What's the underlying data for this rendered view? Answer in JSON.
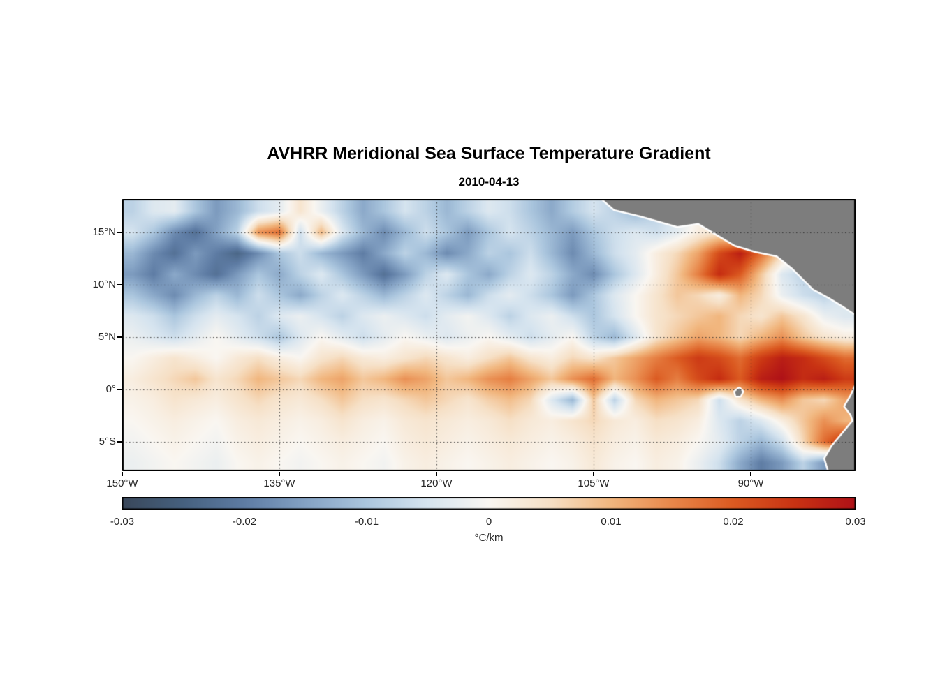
{
  "title": "AVHRR Meridional Sea Surface Temperature Gradient",
  "subtitle": "2010-04-13",
  "chart_data": {
    "type": "heatmap",
    "title": "AVHRR Meridional Sea Surface Temperature Gradient",
    "subtitle": "2010-04-13",
    "x_range_deg_lon": [
      -150,
      -80
    ],
    "y_range_deg_lat": [
      -7.8,
      18.2
    ],
    "grid_on": true,
    "axes": {
      "lat_ticks": [
        {
          "lat": 15,
          "label": "15°N"
        },
        {
          "lat": 10,
          "label": "10°N"
        },
        {
          "lat": 5,
          "label": "5°N"
        },
        {
          "lat": 0,
          "label": "0°"
        },
        {
          "lat": -5,
          "label": "5°S"
        }
      ],
      "lon_ticks": [
        {
          "lon": -150,
          "label": "150°W"
        },
        {
          "lon": -135,
          "label": "135°W"
        },
        {
          "lon": -120,
          "label": "120°W"
        },
        {
          "lon": -105,
          "label": "105°W"
        },
        {
          "lon": -90,
          "label": "90°W"
        }
      ]
    },
    "colorbar": {
      "min": -0.03,
      "max": 0.03,
      "ticks": [
        "-0.03",
        "-0.02",
        "-0.01",
        "0",
        "0.01",
        "0.02",
        "0.03"
      ],
      "unit": "°C/km"
    },
    "colormap": [
      {
        "v": -0.03,
        "c": "#39475a"
      },
      {
        "v": -0.025,
        "c": "#46617f"
      },
      {
        "v": -0.02,
        "c": "#5e7ca4"
      },
      {
        "v": -0.015,
        "c": "#84a2c4"
      },
      {
        "v": -0.01,
        "c": "#abc6de"
      },
      {
        "v": -0.005,
        "c": "#d6e4ef"
      },
      {
        "v": 0.0,
        "c": "#f9f6f1"
      },
      {
        "v": 0.005,
        "c": "#f6e0c6"
      },
      {
        "v": 0.01,
        "c": "#f1b67e"
      },
      {
        "v": 0.015,
        "c": "#e8874a"
      },
      {
        "v": 0.02,
        "c": "#db5a21"
      },
      {
        "v": 0.025,
        "c": "#c93313"
      },
      {
        "v": 0.03,
        "c": "#af1117"
      }
    ],
    "land_color": "#7d7d7d",
    "coast_halo_color": "#ffffff",
    "grid": {
      "lon_start": -149,
      "lon_step": 2,
      "cols": 35,
      "lat_start": 17,
      "lat_step": -2,
      "rows": 13,
      "units": "milli °C/km (value/1000 = °C/km), estimated from image",
      "values_milli": [
        [
          -8,
          -4,
          -3,
          -10,
          -16,
          -12,
          -6,
          -3,
          4,
          -2,
          -8,
          -14,
          -10,
          -5,
          -8,
          -12,
          -8,
          -4,
          -6,
          -10,
          -14,
          -9,
          -5,
          -8,
          -12,
          -8,
          -4,
          0,
          0,
          0,
          0,
          0,
          0,
          0,
          0
        ],
        [
          -5,
          -10,
          -18,
          -22,
          -15,
          -8,
          14,
          18,
          -6,
          10,
          -4,
          -12,
          -18,
          -12,
          -6,
          -10,
          -16,
          -10,
          -5,
          -8,
          -12,
          -16,
          -10,
          -6,
          -4,
          -6,
          -3,
          2,
          4,
          0,
          0,
          0,
          0,
          0,
          0
        ],
        [
          -12,
          -18,
          -22,
          -16,
          -20,
          -24,
          -18,
          -10,
          -6,
          -12,
          -16,
          -20,
          -14,
          -8,
          -12,
          -18,
          -14,
          -8,
          -10,
          -6,
          -12,
          -18,
          -12,
          -6,
          -3,
          2,
          6,
          12,
          22,
          28,
          18,
          6,
          0,
          0,
          0
        ],
        [
          -16,
          -20,
          -14,
          -18,
          -22,
          -16,
          -10,
          -14,
          -8,
          -4,
          -10,
          -16,
          -22,
          -16,
          -8,
          -4,
          -10,
          -14,
          -8,
          -4,
          -8,
          -14,
          -18,
          -10,
          -4,
          2,
          8,
          16,
          26,
          20,
          8,
          -4,
          -8,
          -6,
          -4
        ],
        [
          -10,
          -14,
          -18,
          -12,
          -8,
          -12,
          -6,
          -10,
          -14,
          -8,
          -4,
          -8,
          -12,
          -8,
          -4,
          -8,
          -12,
          -6,
          -3,
          -6,
          -10,
          -16,
          -10,
          -4,
          0,
          4,
          8,
          6,
          2,
          10,
          6,
          -2,
          -6,
          -8,
          -4
        ],
        [
          -4,
          -6,
          -10,
          -6,
          -3,
          -5,
          -8,
          -4,
          -2,
          -5,
          -8,
          -4,
          -2,
          -4,
          -6,
          -3,
          -1,
          -4,
          -8,
          -4,
          -2,
          -6,
          -10,
          -5,
          0,
          4,
          6,
          8,
          10,
          6,
          4,
          8,
          4,
          -2,
          -4
        ],
        [
          -2,
          -4,
          -6,
          -3,
          0,
          -3,
          -6,
          -10,
          -4,
          0,
          -3,
          -6,
          -3,
          0,
          -2,
          -4,
          -2,
          0,
          -3,
          -6,
          -3,
          0,
          -8,
          -12,
          -4,
          4,
          8,
          12,
          10,
          6,
          10,
          14,
          8,
          4,
          2
        ],
        [
          0,
          2,
          4,
          2,
          0,
          3,
          5,
          2,
          0,
          4,
          6,
          3,
          2,
          4,
          6,
          4,
          2,
          5,
          8,
          4,
          2,
          6,
          4,
          8,
          12,
          16,
          20,
          24,
          22,
          18,
          24,
          28,
          26,
          22,
          18
        ],
        [
          2,
          4,
          6,
          8,
          4,
          6,
          10,
          8,
          6,
          10,
          12,
          8,
          10,
          14,
          12,
          8,
          10,
          14,
          16,
          12,
          8,
          14,
          18,
          10,
          14,
          20,
          16,
          22,
          26,
          20,
          28,
          30,
          26,
          28,
          24
        ],
        [
          1,
          2,
          4,
          3,
          2,
          4,
          6,
          4,
          3,
          5,
          8,
          5,
          4,
          6,
          8,
          6,
          4,
          7,
          9,
          6,
          -4,
          -12,
          8,
          -8,
          6,
          10,
          8,
          6,
          -6,
          4,
          10,
          14,
          8,
          6,
          12
        ],
        [
          0,
          1,
          2,
          1,
          0,
          2,
          3,
          2,
          1,
          2,
          4,
          2,
          1,
          3,
          4,
          3,
          2,
          3,
          5,
          3,
          2,
          4,
          6,
          3,
          2,
          5,
          4,
          2,
          -4,
          -8,
          -4,
          2,
          8,
          14,
          10
        ],
        [
          -1,
          0,
          1,
          0,
          -1,
          1,
          2,
          1,
          0,
          1,
          2,
          1,
          0,
          2,
          3,
          2,
          1,
          2,
          3,
          2,
          1,
          2,
          4,
          2,
          1,
          3,
          2,
          0,
          -3,
          -8,
          -12,
          -6,
          6,
          18,
          26
        ],
        [
          -2,
          -1,
          0,
          -1,
          -2,
          0,
          1,
          0,
          -1,
          0,
          1,
          0,
          -1,
          1,
          2,
          1,
          0,
          1,
          2,
          1,
          0,
          1,
          3,
          1,
          0,
          2,
          1,
          -2,
          -6,
          -14,
          -20,
          -16,
          -8,
          -16,
          -22
        ]
      ]
    },
    "land_polygons": [
      {
        "name": "central-america-mexico",
        "points": [
          [
            -104.5,
            18.5
          ],
          [
            -103,
            17.2
          ],
          [
            -100.5,
            16.6
          ],
          [
            -97,
            15.6
          ],
          [
            -95,
            15.9
          ],
          [
            -93.5,
            15.0
          ],
          [
            -91.5,
            13.8
          ],
          [
            -89.5,
            13.2
          ],
          [
            -87.5,
            12.8
          ],
          [
            -86,
            11.6
          ],
          [
            -85,
            10.6
          ],
          [
            -84,
            9.6
          ],
          [
            -82.5,
            8.8
          ],
          [
            -81.2,
            8.0
          ],
          [
            -80,
            7.2
          ],
          [
            -79.5,
            7.5
          ],
          [
            -79.5,
            18.5
          ]
        ]
      },
      {
        "name": "south-america",
        "points": [
          [
            -79.5,
            0.6
          ],
          [
            -80,
            0.3
          ],
          [
            -80.4,
            -0.6
          ],
          [
            -81,
            -1.6
          ],
          [
            -80.4,
            -2.4
          ],
          [
            -80.2,
            -3.0
          ],
          [
            -81.2,
            -4.2
          ],
          [
            -82.2,
            -5.4
          ],
          [
            -82.9,
            -6.6
          ],
          [
            -82.6,
            -7.6
          ],
          [
            -82.2,
            -8.4
          ],
          [
            -79.5,
            -8.4
          ]
        ]
      },
      {
        "name": "galapagos",
        "points": [
          [
            -91.5,
            -0.2
          ],
          [
            -91.1,
            0.1
          ],
          [
            -90.8,
            -0.2
          ],
          [
            -91.0,
            -0.6
          ],
          [
            -91.4,
            -0.6
          ]
        ]
      }
    ]
  }
}
